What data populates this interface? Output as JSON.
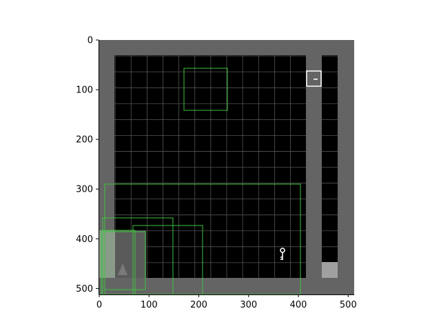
{
  "figure": {
    "x_ticks": [
      "0",
      "100",
      "200",
      "300",
      "400",
      "500"
    ],
    "y_ticks": [
      "0",
      "100",
      "200",
      "300",
      "400",
      "500"
    ],
    "x_tick_values": [
      0,
      100,
      200,
      300,
      400,
      500
    ],
    "y_tick_values": [
      0,
      100,
      200,
      300,
      400,
      500
    ],
    "x_range": [
      0,
      512
    ],
    "y_range": [
      512,
      0
    ]
  },
  "game": {
    "grid_cells": [
      16,
      16
    ],
    "cell_size_units": 32,
    "colors": {
      "wall": "#646464",
      "floor": "#000000",
      "grid_line": "#555555",
      "agent": "#6e6e6e",
      "key": "#ffffff",
      "door": "#ffffff",
      "goal_tile": "#a0a0a0",
      "highlight_box": "#3ec43e",
      "highlight_fill": "#8fd18f"
    },
    "objects": {
      "key": "key-icon",
      "door": "locked-door-icon",
      "agent": "agent-triangle-icon",
      "goal": "goal-tile"
    },
    "overlay_boxes": 6
  }
}
